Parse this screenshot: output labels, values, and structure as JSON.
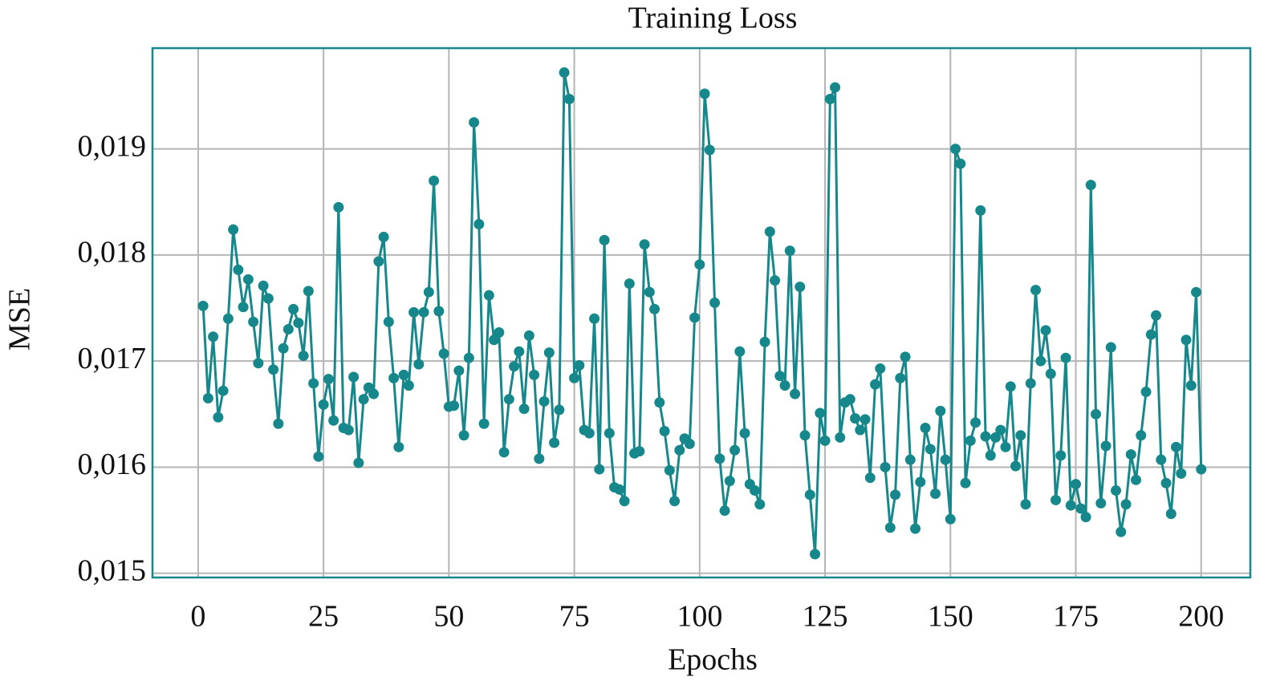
{
  "chart_data": {
    "type": "line",
    "title": "Training Loss",
    "x_label": "Epochs",
    "y_label": "MSE",
    "color": "#16888c",
    "grid": true,
    "xlim": [
      -9.1,
      209.8
    ],
    "ylim": [
      0.01496,
      0.01995
    ],
    "xticks": [
      0,
      25,
      50,
      75,
      100,
      125,
      150,
      175,
      200
    ],
    "yticks": [
      {
        "value": 0.015,
        "label": "0,015"
      },
      {
        "value": 0.016,
        "label": "0,016"
      },
      {
        "value": 0.017,
        "label": "0,017"
      },
      {
        "value": 0.018,
        "label": "0,018"
      },
      {
        "value": 0.019,
        "label": "0,019"
      }
    ],
    "x": [
      1,
      2,
      3,
      4,
      5,
      6,
      7,
      8,
      9,
      10,
      11,
      12,
      13,
      14,
      15,
      16,
      17,
      18,
      19,
      20,
      21,
      22,
      23,
      24,
      25,
      26,
      27,
      28,
      29,
      30,
      31,
      32,
      33,
      34,
      35,
      36,
      37,
      38,
      39,
      40,
      41,
      42,
      43,
      44,
      45,
      46,
      47,
      48,
      49,
      50,
      51,
      52,
      53,
      54,
      55,
      56,
      57,
      58,
      59,
      60,
      61,
      62,
      63,
      64,
      65,
      66,
      67,
      68,
      69,
      70,
      71,
      72,
      73,
      74,
      75,
      76,
      77,
      78,
      79,
      80,
      81,
      82,
      83,
      84,
      85,
      86,
      87,
      88,
      89,
      90,
      91,
      92,
      93,
      94,
      95,
      96,
      97,
      98,
      99,
      100,
      101,
      102,
      103,
      104,
      105,
      106,
      107,
      108,
      109,
      110,
      111,
      112,
      113,
      114,
      115,
      116,
      117,
      118,
      119,
      120,
      121,
      122,
      123,
      124,
      125,
      126,
      127,
      128,
      129,
      130,
      131,
      132,
      133,
      134,
      135,
      136,
      137,
      138,
      139,
      140,
      141,
      142,
      143,
      144,
      145,
      146,
      147,
      148,
      149,
      150,
      151,
      152,
      153,
      154,
      155,
      156,
      157,
      158,
      159,
      160,
      161,
      162,
      163,
      164,
      165,
      166,
      167,
      168,
      169,
      170,
      171,
      172,
      173,
      174,
      175,
      176,
      177,
      178,
      179,
      180,
      181,
      182,
      183,
      184,
      185,
      186,
      187,
      188,
      189,
      190,
      191,
      192,
      193,
      194,
      195,
      196,
      197,
      198,
      199,
      200
    ],
    "values": [
      0.01752,
      0.01665,
      0.01723,
      0.01647,
      0.01672,
      0.0174,
      0.01824,
      0.01786,
      0.01751,
      0.01777,
      0.01737,
      0.01698,
      0.01771,
      0.01759,
      0.01692,
      0.01641,
      0.01712,
      0.0173,
      0.01749,
      0.01736,
      0.01705,
      0.01766,
      0.01679,
      0.0161,
      0.01659,
      0.01683,
      0.01644,
      0.01845,
      0.01637,
      0.01635,
      0.01685,
      0.01604,
      0.01664,
      0.01675,
      0.01669,
      0.01794,
      0.01817,
      0.01737,
      0.01684,
      0.01619,
      0.01687,
      0.01677,
      0.01746,
      0.01697,
      0.01746,
      0.01765,
      0.0187,
      0.01747,
      0.01707,
      0.01657,
      0.01658,
      0.01691,
      0.0163,
      0.01703,
      0.01925,
      0.01829,
      0.01641,
      0.01762,
      0.0172,
      0.01727,
      0.01614,
      0.01664,
      0.01695,
      0.01709,
      0.01655,
      0.01724,
      0.01687,
      0.01608,
      0.01662,
      0.01708,
      0.01623,
      0.01654,
      0.01972,
      0.01947,
      0.01684,
      0.01696,
      0.01635,
      0.01632,
      0.0174,
      0.01598,
      0.01814,
      0.01632,
      0.01581,
      0.01579,
      0.01568,
      0.01773,
      0.01613,
      0.01615,
      0.0181,
      0.01765,
      0.01749,
      0.01661,
      0.01634,
      0.01597,
      0.01568,
      0.01616,
      0.01627,
      0.01622,
      0.01741,
      0.01791,
      0.01952,
      0.01899,
      0.01755,
      0.01608,
      0.01559,
      0.01587,
      0.01616,
      0.01709,
      0.01632,
      0.01584,
      0.01578,
      0.01565,
      0.01718,
      0.01822,
      0.01776,
      0.01686,
      0.01677,
      0.01804,
      0.01669,
      0.0177,
      0.0163,
      0.01574,
      0.01518,
      0.01651,
      0.01625,
      0.01947,
      0.01958,
      0.01628,
      0.01661,
      0.01664,
      0.01646,
      0.01635,
      0.01645,
      0.0159,
      0.01678,
      0.01693,
      0.016,
      0.01543,
      0.01574,
      0.01684,
      0.01704,
      0.01607,
      0.01542,
      0.01586,
      0.01637,
      0.01617,
      0.01575,
      0.01653,
      0.01607,
      0.01551,
      0.019,
      0.01886,
      0.01585,
      0.01625,
      0.01642,
      0.01842,
      0.01629,
      0.01611,
      0.01628,
      0.01635,
      0.01619,
      0.01676,
      0.01601,
      0.0163,
      0.01565,
      0.01679,
      0.01767,
      0.017,
      0.01729,
      0.01688,
      0.01569,
      0.01611,
      0.01703,
      0.01564,
      0.01584,
      0.01561,
      0.01553,
      0.01866,
      0.0165,
      0.01566,
      0.0162,
      0.01713,
      0.01578,
      0.01539,
      0.01565,
      0.01612,
      0.01588,
      0.0163,
      0.01671,
      0.01725,
      0.01743,
      0.01607,
      0.01585,
      0.01556,
      0.01619,
      0.01594,
      0.0172,
      0.01677,
      0.01765,
      0.01598
    ]
  }
}
